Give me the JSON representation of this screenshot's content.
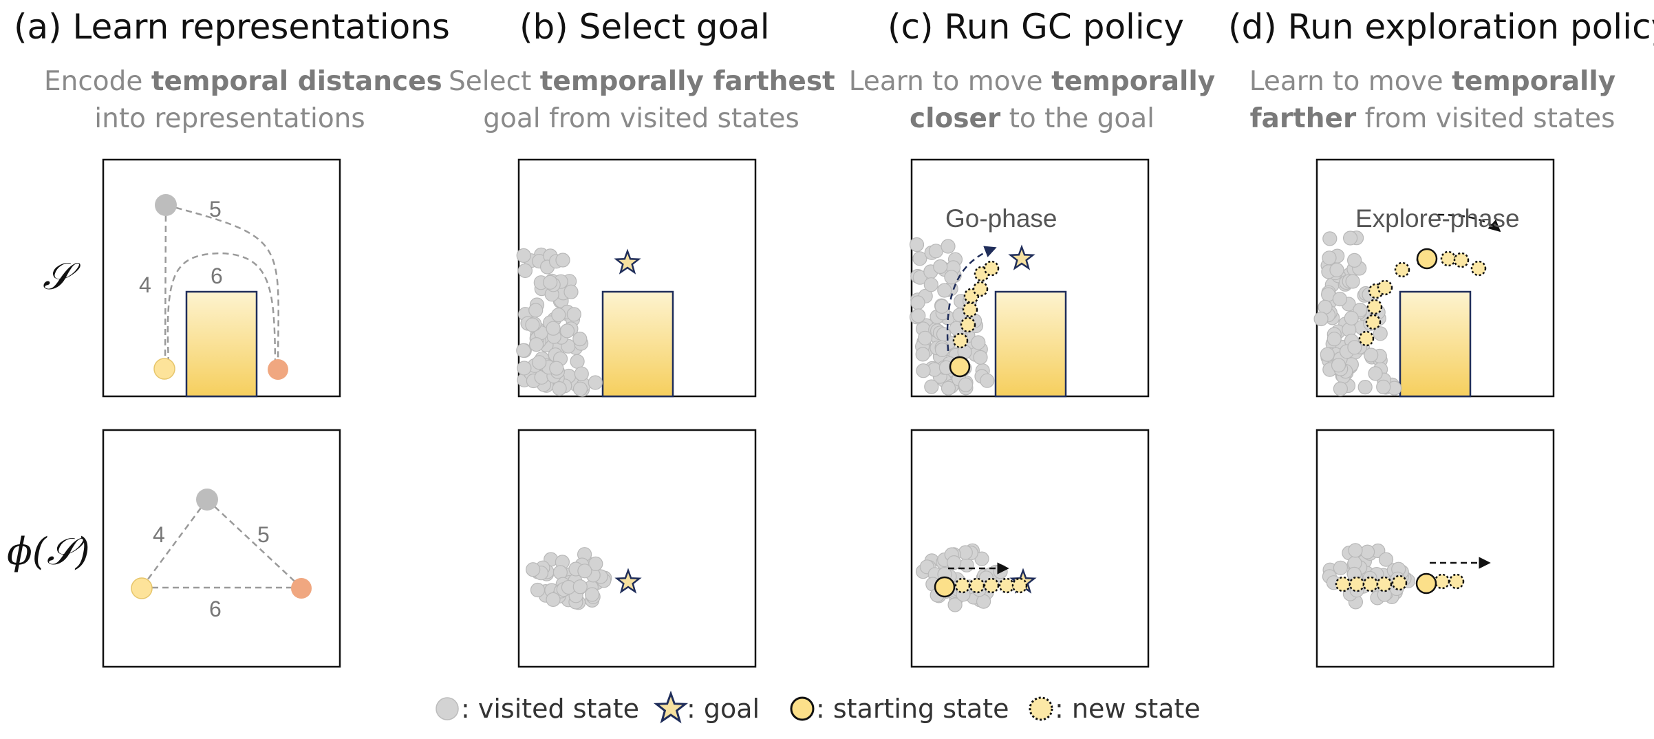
{
  "panels": [
    {
      "title": "(a) Learn representations",
      "sub_parts": [
        [
          "Encode ",
          false
        ],
        [
          "temporal distances",
          true
        ],
        [
          "|",
          false
        ],
        [
          "into representations",
          false
        ]
      ]
    },
    {
      "title": "(b) Select goal",
      "sub_parts": [
        [
          "Select ",
          false
        ],
        [
          "temporally farthest",
          true
        ],
        [
          "|",
          false
        ],
        [
          "goal from visited states",
          false
        ]
      ]
    },
    {
      "title": "(c) Run GC policy",
      "sub_parts": [
        [
          "Learn to move ",
          false
        ],
        [
          "temporally",
          true
        ],
        [
          "|",
          false
        ],
        [
          "closer",
          true
        ],
        [
          " to the goal",
          false
        ]
      ]
    },
    {
      "title": "(d) Run exploration policy",
      "sub_parts": [
        [
          "Learn to move ",
          false
        ],
        [
          "temporally",
          true
        ],
        [
          "|",
          false
        ],
        [
          "farther",
          true
        ],
        [
          " from visited states",
          false
        ]
      ]
    }
  ],
  "row_labels": {
    "state_space": "𝒮",
    "representation": "ϕ(𝒮)"
  },
  "distances": {
    "top": [
      "5",
      "4",
      "6"
    ],
    "bottom": [
      "4",
      "5",
      "6"
    ]
  },
  "phases": {
    "go": "Go-phase",
    "explore": "Explore-phase"
  },
  "legend": {
    "visited": ": visited state",
    "goal": ": goal",
    "start": ": starting state",
    "new": ": new state"
  },
  "colors": {
    "visited": "#d3d3d3",
    "visited_stroke": "#b8b8b8",
    "start_fill": "#fce08a",
    "new_fill": "#fce8a6",
    "goal_fill": "#f6e1a0",
    "goal_stroke": "#1f2d5a",
    "orange": "#f0a780",
    "arrow": "#1f2d5a"
  }
}
